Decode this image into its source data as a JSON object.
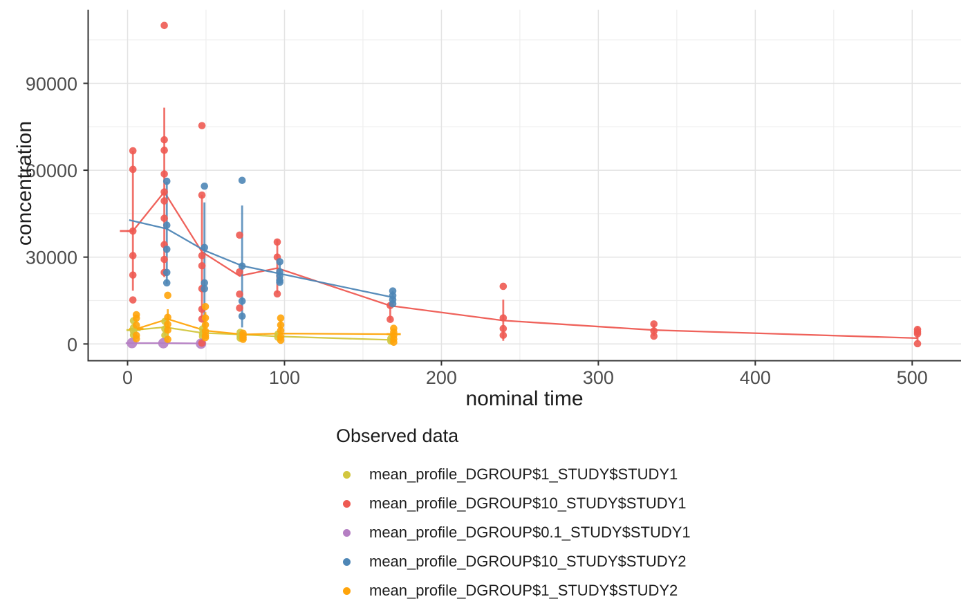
{
  "chart_data": {
    "type": "scatter-line",
    "xlabel": "nominal time",
    "ylabel": "concentration",
    "legend_title": "Observed data",
    "x_ticks": [
      0,
      100,
      200,
      300,
      400,
      500
    ],
    "x_minor": [
      50,
      150,
      250,
      350,
      450
    ],
    "y_ticks": [
      0,
      30000,
      60000,
      90000
    ],
    "y_minor": [
      15000,
      45000,
      75000,
      105000
    ],
    "xlim": [
      -25,
      530
    ],
    "ylim": [
      -5500,
      115500
    ],
    "grid": true,
    "legend_position": "bottom-left",
    "draw_order": [
      0,
      2,
      1,
      3,
      4
    ],
    "series": [
      {
        "key": "dgroup1-study1",
        "name": "mean_profile_DGROUP$1_STUDY$STUDY1",
        "color": "#d2c63e",
        "dx": -0.2,
        "point_r": 5.3,
        "line": [
          [
            0,
            4800
          ],
          [
            4,
            4800
          ],
          [
            24,
            5800
          ],
          [
            48,
            3800
          ],
          [
            72,
            3300
          ],
          [
            96,
            2600
          ],
          [
            168,
            1400
          ]
        ],
        "points": [
          [
            4,
            8000
          ],
          [
            4,
            5600
          ],
          [
            4,
            4400
          ],
          [
            4,
            3100
          ],
          [
            24,
            7800
          ],
          [
            24,
            5200
          ],
          [
            24,
            3000
          ],
          [
            48,
            5200
          ],
          [
            48,
            3600
          ],
          [
            48,
            2600
          ],
          [
            72,
            4000
          ],
          [
            72,
            2800
          ],
          [
            72,
            2000
          ],
          [
            96,
            3400
          ],
          [
            96,
            2300
          ],
          [
            168,
            1900
          ],
          [
            168,
            1000
          ]
        ],
        "errorbars": [
          [
            24,
            2800,
            7800
          ]
        ],
        "crossbars": [
          [
            4,
            4800,
            4.5
          ]
        ]
      },
      {
        "key": "dgroup10-study1",
        "name": "mean_profile_DGROUP$10_STUDY$STUDY1",
        "color": "#ee5a52",
        "dx": -0.6,
        "point_r": 5.3,
        "line": [
          [
            0,
            39000
          ],
          [
            4,
            39000
          ],
          [
            24,
            52500
          ],
          [
            48,
            31800
          ],
          [
            72,
            23500
          ],
          [
            96,
            26200
          ],
          [
            168,
            13200
          ],
          [
            240,
            8100
          ],
          [
            336,
            4800
          ],
          [
            504,
            2000
          ]
        ],
        "points": [
          [
            4,
            66700
          ],
          [
            4,
            60300
          ],
          [
            4,
            39000
          ],
          [
            4,
            30500
          ],
          [
            4,
            23800
          ],
          [
            4,
            15200
          ],
          [
            24,
            110000
          ],
          [
            24,
            70500
          ],
          [
            24,
            66900
          ],
          [
            24,
            58700
          ],
          [
            24,
            52500
          ],
          [
            24,
            49400
          ],
          [
            24,
            43400
          ],
          [
            24,
            34300
          ],
          [
            24,
            29200
          ],
          [
            24,
            24700
          ],
          [
            48,
            75400
          ],
          [
            48,
            51400
          ],
          [
            48,
            30500
          ],
          [
            48,
            27000
          ],
          [
            48,
            19100
          ],
          [
            48,
            12000
          ],
          [
            48,
            8600
          ],
          [
            48,
            300
          ],
          [
            72,
            37600
          ],
          [
            72,
            24900
          ],
          [
            72,
            17200
          ],
          [
            72,
            12400
          ],
          [
            96,
            35200
          ],
          [
            96,
            30000
          ],
          [
            96,
            17300
          ],
          [
            168,
            13300
          ],
          [
            168,
            8500
          ],
          [
            240,
            19900
          ],
          [
            240,
            9000
          ],
          [
            240,
            5300
          ],
          [
            240,
            3000
          ],
          [
            336,
            6900
          ],
          [
            336,
            4500
          ],
          [
            336,
            2700
          ],
          [
            504,
            5000
          ],
          [
            504,
            4200
          ],
          [
            504,
            3500
          ],
          [
            504,
            100
          ]
        ],
        "errorbars": [
          [
            4,
            18400,
            66700
          ],
          [
            24,
            23100,
            81600
          ],
          [
            48,
            9000,
            51400
          ],
          [
            96,
            17500,
            36000
          ],
          [
            168,
            8100,
            14100
          ],
          [
            240,
            1100,
            15300
          ],
          [
            336,
            2700,
            6900
          ],
          [
            504,
            800,
            6200
          ]
        ],
        "crossbars": [
          [
            0,
            39000,
            4.3
          ]
        ]
      },
      {
        "key": "dgroup0.1-study1",
        "name": "mean_profile_DGROUP$0.1_STUDY$STUDY1",
        "color": "#b57ec3",
        "dx": -1.2,
        "point_r": 7.5,
        "line": [
          [
            0,
            300
          ],
          [
            4,
            300
          ],
          [
            24,
            300
          ],
          [
            48,
            200
          ]
        ],
        "points": [
          [
            4,
            300
          ],
          [
            24,
            250
          ],
          [
            48,
            100
          ]
        ],
        "errorbars": [],
        "crossbars": []
      },
      {
        "key": "dgroup10-study2",
        "name": "mean_profile_DGROUP$10_STUDY$STUDY2",
        "color": "#4e86b6",
        "dx": 1.0,
        "point_r": 5.3,
        "line": [
          [
            0,
            42800
          ],
          [
            24,
            39800
          ],
          [
            48,
            32300
          ],
          [
            72,
            27000
          ],
          [
            96,
            24300
          ],
          [
            168,
            16100
          ]
        ],
        "points": [
          [
            24,
            56200
          ],
          [
            24,
            41000
          ],
          [
            24,
            32700
          ],
          [
            24,
            24700
          ],
          [
            24,
            21100
          ],
          [
            48,
            54500
          ],
          [
            48,
            33300
          ],
          [
            48,
            21100
          ],
          [
            48,
            19100
          ],
          [
            72,
            56500
          ],
          [
            72,
            26900
          ],
          [
            72,
            14800
          ],
          [
            72,
            9600
          ],
          [
            96,
            28400
          ],
          [
            96,
            24900
          ],
          [
            96,
            23500
          ],
          [
            96,
            22000
          ],
          [
            96,
            21300
          ],
          [
            168,
            18300
          ],
          [
            168,
            16700
          ],
          [
            168,
            15300
          ],
          [
            168,
            13900
          ]
        ],
        "errorbars": [
          [
            24,
            20700,
            56000
          ],
          [
            48,
            5300,
            48900
          ],
          [
            72,
            5700,
            47800
          ],
          [
            96,
            20900,
            28400
          ],
          [
            168,
            13800,
            18400
          ]
        ],
        "crossbars": []
      },
      {
        "key": "dgroup1-study2",
        "name": "mean_profile_DGROUP$1_STUDY$STUDY2",
        "color": "#ffa40a",
        "dx": 1.6,
        "point_r": 5.3,
        "line": [
          [
            0,
            5200
          ],
          [
            4,
            5200
          ],
          [
            24,
            8600
          ],
          [
            48,
            4600
          ],
          [
            72,
            3300
          ],
          [
            96,
            3600
          ],
          [
            168,
            3400
          ]
        ],
        "points": [
          [
            4,
            10100
          ],
          [
            4,
            8900
          ],
          [
            4,
            6500
          ],
          [
            4,
            3000
          ],
          [
            4,
            1800
          ],
          [
            24,
            16800
          ],
          [
            24,
            9200
          ],
          [
            24,
            6800
          ],
          [
            24,
            4800
          ],
          [
            24,
            1600
          ],
          [
            48,
            12900
          ],
          [
            48,
            9000
          ],
          [
            48,
            6600
          ],
          [
            48,
            4400
          ],
          [
            48,
            2900
          ],
          [
            48,
            2200
          ],
          [
            72,
            3700
          ],
          [
            72,
            2900
          ],
          [
            72,
            2200
          ],
          [
            72,
            1600
          ],
          [
            96,
            8950
          ],
          [
            96,
            6550
          ],
          [
            96,
            4650
          ],
          [
            96,
            2500
          ],
          [
            96,
            1300
          ],
          [
            168,
            5400
          ],
          [
            168,
            4100
          ],
          [
            168,
            3000
          ],
          [
            168,
            1700
          ],
          [
            168,
            600
          ]
        ],
        "errorbars": [
          [
            24,
            1400,
            12000
          ],
          [
            48,
            2200,
            11000
          ],
          [
            96,
            900,
            8500
          ]
        ],
        "crossbars": [
          [
            4,
            5200,
            4.5
          ],
          [
            168,
            3400,
            4.5
          ]
        ]
      }
    ],
    "style": {
      "grid_major_color": "#e3e3e3",
      "grid_minor_color": "#eeeeee",
      "axis_line_color": "#333333",
      "tick_label_color": "#4d4d4d",
      "title_color": "#1c1c1c"
    }
  }
}
